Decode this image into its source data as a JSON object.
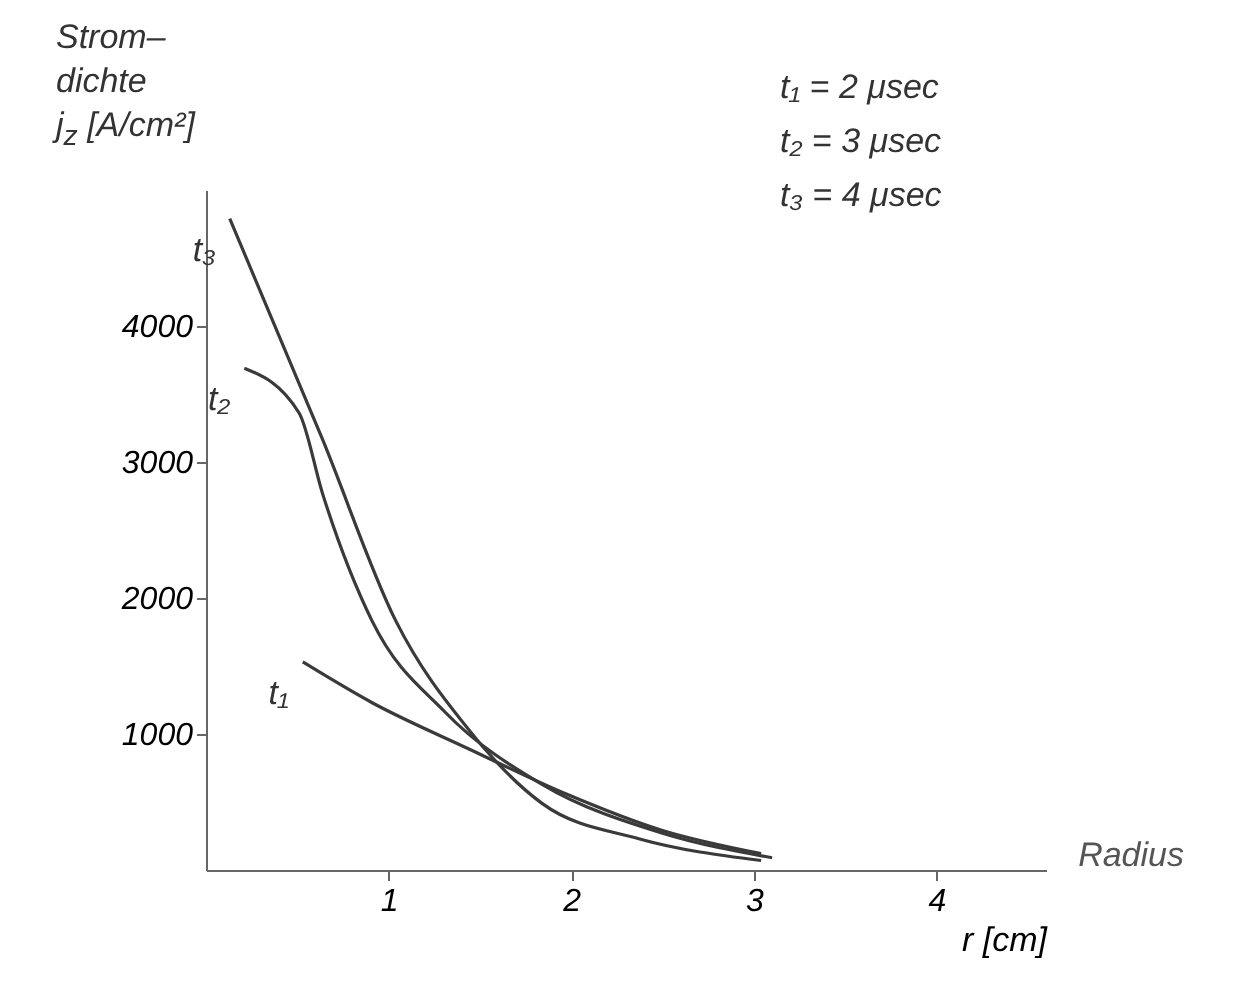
{
  "chart_data": {
    "type": "line",
    "xlabel": "r [cm]",
    "ylabel": "Strom–\ndichte\nj$_{z}$ [A/cm²]",
    "xlim": [
      0,
      4.6
    ],
    "xticks": [
      1,
      2,
      3,
      4
    ],
    "ylim": [
      0,
      5000
    ],
    "yticks": [
      1000,
      2000,
      3000,
      4000
    ],
    "grid": false,
    "marker": "none",
    "line_style": "solid",
    "series": [
      {
        "name": "t₃",
        "color": "#3a3a3a",
        "x": [
          0.13,
          0.64,
          1.04,
          1.44,
          1.84,
          2.37,
          3.04
        ],
        "values": [
          4790,
          3160,
          1830,
          1030,
          490,
          230,
          70
        ]
      },
      {
        "name": "t₂",
        "color": "#3a3a3a",
        "x": [
          0.21,
          0.51,
          0.64,
          0.91,
          1.31,
          1.84,
          2.5,
          3.1
        ],
        "values": [
          3690,
          3360,
          2760,
          1830,
          1160,
          630,
          270,
          90
        ]
      },
      {
        "name": "t₁",
        "color": "#3a3a3a",
        "x": [
          0.53,
          0.91,
          1.44,
          1.97,
          2.5,
          3.04
        ],
        "values": [
          1530,
          1230,
          890,
          560,
          290,
          120
        ]
      }
    ],
    "annotations": [
      "t₁ = 2 μsec",
      "t₂ = 3 μsec",
      "t₃ = 4 μsec",
      "Radius"
    ]
  }
}
